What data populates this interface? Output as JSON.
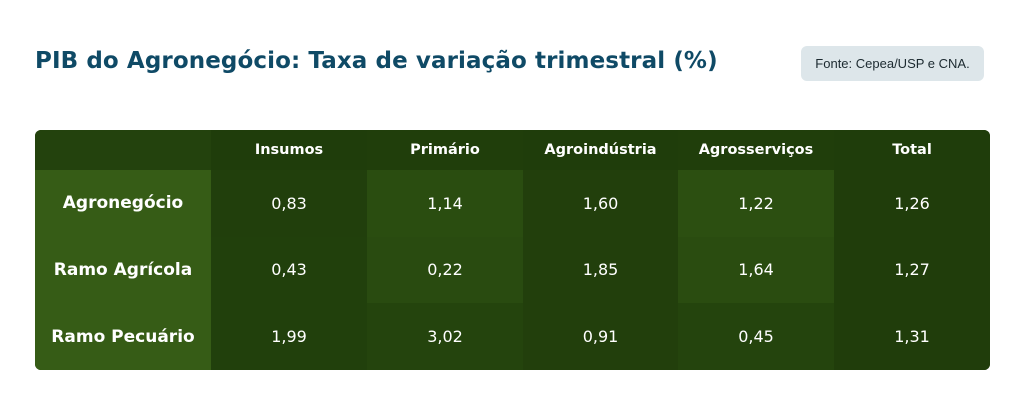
{
  "title": "PIB do Agronegócio: Taxa de variação trimestral (%)",
  "source": "Fonte: Cepea/USP e CNA.",
  "colors": {
    "title": "#0f4a66",
    "source_bg": "#dde6ea",
    "table_bg": "#213f0c",
    "row_label_bg": "#365c16",
    "text_light": "#ffffff"
  },
  "chart_data": {
    "type": "table",
    "title": "PIB do Agronegócio: Taxa de variação trimestral (%)",
    "columns": [
      "Insumos",
      "Primário",
      "Agroindústria",
      "Agrosserviços",
      "Total"
    ],
    "rows": [
      {
        "label": "Agronegócio",
        "values": [
          "0,83",
          "1,14",
          "1,60",
          "1,22",
          "1,26"
        ]
      },
      {
        "label": "Ramo Agrícola",
        "values": [
          "0,43",
          "0,22",
          "1,85",
          "1,64",
          "1,27"
        ]
      },
      {
        "label": "Ramo Pecuário",
        "values": [
          "1,99",
          "3,02",
          "0,91",
          "0,45",
          "1,31"
        ]
      }
    ]
  }
}
